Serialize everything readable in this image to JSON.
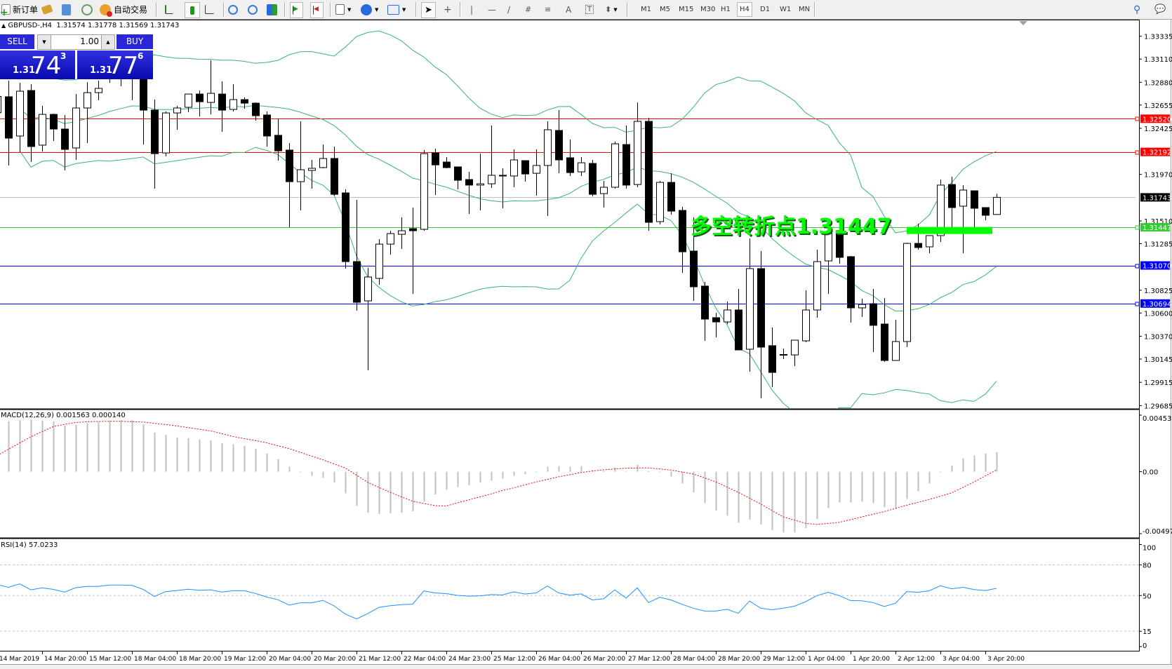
{
  "toolbar": {
    "new_order": "新订单",
    "auto_trading": "自动交易",
    "timeframes": [
      "M1",
      "M5",
      "M15",
      "M30",
      "H1",
      "H4",
      "D1",
      "W1",
      "MN"
    ],
    "active_timeframe": "H4"
  },
  "chart_header": {
    "symbol": "GBPUSD-,H4",
    "open": "1.31574",
    "high": "1.31778",
    "low": "1.31569",
    "close": "1.31743"
  },
  "one_click": {
    "sell_label": "SELL",
    "buy_label": "BUY",
    "lot": "1.00",
    "sell_price": {
      "prefix": "1.31",
      "big": "74",
      "sup": "3"
    },
    "buy_price": {
      "prefix": "1.31",
      "big": "77",
      "sup": "6"
    }
  },
  "annotation": {
    "text": "多空转折点1.31447",
    "level": 1.31447,
    "color": "#00ff00"
  },
  "macd_label": "MACD(12,26,9) 0.001563 0.000140",
  "rsi_label": "RSI(14) 57.0233",
  "chart_data": [
    {
      "type": "candlestick",
      "symbol": "GBPUSD-",
      "timeframe": "H4",
      "ylim": [
        1.29537,
        1.33485
      ],
      "y_ticks": [
        "1.33335",
        "1.33110",
        "1.32880",
        "1.32655",
        "1.32425",
        "1.31970",
        "1.31510",
        "1.31285",
        "1.30825",
        "1.30600",
        "1.30370",
        "1.30145",
        "1.29915",
        "1.29685"
      ],
      "time_labels": [
        "14 Mar 2019",
        "14 Mar 20:00",
        "15 Mar 12:00",
        "18 Mar 04:00",
        "18 Mar 20:00",
        "19 Mar 12:00",
        "20 Mar 04:00",
        "20 Mar 20:00",
        "21 Mar 12:00",
        "22 Mar 04:00",
        "24 Mar 23:00",
        "25 Mar 12:00",
        "26 Mar 04:00",
        "26 Mar 20:00",
        "27 Mar 12:00",
        "28 Mar 04:00",
        "28 Mar 20:00",
        "29 Mar 12:00",
        "1 Apr 04:00",
        "1 Apr 20:00",
        "2 Apr 12:00",
        "3 Apr 04:00",
        "3 Apr 20:00"
      ],
      "ohlc_order": [
        "open",
        "high",
        "low",
        "close"
      ],
      "ohlc": [
        [
          1.3258,
          1.3282,
          1.3247,
          1.3274
        ],
        [
          1.32737,
          1.32896,
          1.32058,
          1.32328
        ],
        [
          1.32349,
          1.32875,
          1.32189,
          1.32792
        ],
        [
          1.32799,
          1.32861,
          1.32092,
          1.32245
        ],
        [
          1.32259,
          1.32647,
          1.32196,
          1.32563
        ],
        [
          1.32563,
          1.3257,
          1.323,
          1.32418
        ],
        [
          1.32418,
          1.32556,
          1.32009,
          1.32217
        ],
        [
          1.32231,
          1.32764,
          1.32113,
          1.32626
        ],
        [
          1.32626,
          1.32882,
          1.32279,
          1.32778
        ],
        [
          1.32778,
          1.32896,
          1.32702,
          1.3282
        ],
        [
          1.3292,
          1.3305,
          1.32875,
          1.3298
        ],
        [
          1.3298,
          1.331,
          1.32841,
          1.3294
        ],
        [
          1.3294,
          1.3315,
          1.32702,
          1.3296
        ],
        [
          1.3296,
          1.33,
          1.32265,
          1.32605
        ],
        [
          1.32605,
          1.32709,
          1.31829,
          1.32175
        ],
        [
          1.32182,
          1.32591,
          1.32148,
          1.32577
        ],
        [
          1.32577,
          1.32647,
          1.32411,
          1.32626
        ],
        [
          1.32633,
          1.32764,
          1.32585,
          1.32764
        ],
        [
          1.32764,
          1.32799,
          1.32543,
          1.32688
        ],
        [
          1.32681,
          1.33097,
          1.32563,
          1.32771
        ],
        [
          1.32764,
          1.32889,
          1.3239,
          1.32605
        ],
        [
          1.32612,
          1.32861,
          1.32591,
          1.32709
        ],
        [
          1.32709,
          1.3273,
          1.32619,
          1.32674
        ],
        [
          1.32674,
          1.32681,
          1.32501,
          1.3255
        ],
        [
          1.32557,
          1.32591,
          1.32245,
          1.32349
        ],
        [
          1.32356,
          1.32522,
          1.32106,
          1.32203
        ],
        [
          1.3221,
          1.32279,
          1.31448,
          1.31898
        ],
        [
          1.31898,
          1.32494,
          1.31614,
          1.32016
        ],
        [
          1.32009,
          1.32113,
          1.31829,
          1.3203
        ],
        [
          1.32037,
          1.32265,
          1.3203,
          1.32127
        ],
        [
          1.32127,
          1.32245,
          1.3176,
          1.31773
        ],
        [
          1.31787,
          1.31822,
          1.31039,
          1.31108
        ],
        [
          1.31108,
          1.31718,
          1.30623,
          1.30706
        ],
        [
          1.3072,
          1.31046,
          1.30034,
          1.30956
        ],
        [
          1.30942,
          1.3133,
          1.30879,
          1.31281
        ],
        [
          1.31281,
          1.31413,
          1.31177,
          1.31385
        ],
        [
          1.31378,
          1.31545,
          1.31233,
          1.31413
        ],
        [
          1.31434,
          1.31642,
          1.30789,
          1.31413
        ],
        [
          1.31427,
          1.3221,
          1.31413,
          1.32175
        ],
        [
          1.32182,
          1.32224,
          1.31767,
          1.32064
        ],
        [
          1.32092,
          1.32141,
          1.3203,
          1.32037
        ],
        [
          1.32044,
          1.32044,
          1.31822,
          1.31912
        ],
        [
          1.31919,
          1.31995,
          1.31579,
          1.31864
        ],
        [
          1.31864,
          1.32175,
          1.31614,
          1.31877
        ],
        [
          1.31877,
          1.32453,
          1.31836,
          1.31961
        ],
        [
          1.31961,
          1.3203,
          1.31635,
          1.31954
        ],
        [
          1.31954,
          1.32217,
          1.31843,
          1.32113
        ],
        [
          1.32106,
          1.32106,
          1.31898,
          1.31974
        ],
        [
          1.31981,
          1.32217,
          1.3176,
          1.32058
        ],
        [
          1.32058,
          1.32494,
          1.31559,
          1.32411
        ],
        [
          1.32404,
          1.32605,
          1.31981,
          1.32113
        ],
        [
          1.32134,
          1.32314,
          1.31954,
          1.31988
        ],
        [
          1.31995,
          1.32141,
          1.31954,
          1.32085
        ],
        [
          1.32078,
          1.32113,
          1.31753,
          1.31773
        ],
        [
          1.3178,
          1.31905,
          1.31642,
          1.31843
        ],
        [
          1.31843,
          1.32293,
          1.31829,
          1.32272
        ],
        [
          1.32265,
          1.32453,
          1.31829,
          1.31864
        ],
        [
          1.3187,
          1.32681,
          1.31843,
          1.32494
        ],
        [
          1.32494,
          1.32529,
          1.31413,
          1.31496
        ],
        [
          1.31503,
          1.31905,
          1.31475,
          1.31891
        ],
        [
          1.31891,
          1.31981,
          1.31572,
          1.31607
        ],
        [
          1.31614,
          1.31649,
          1.30997,
          1.31205
        ],
        [
          1.31212,
          1.31545,
          1.3072,
          1.30859
        ],
        [
          1.30866,
          1.30907,
          1.30325,
          1.3054
        ],
        [
          1.30554,
          1.30602,
          1.3036,
          1.30512
        ],
        [
          1.30512,
          1.30713,
          1.30491,
          1.3063
        ],
        [
          1.3063,
          1.30838,
          1.30235,
          1.30235
        ],
        [
          1.30242,
          1.31337,
          1.3002,
          1.31039
        ],
        [
          1.31039,
          1.31212,
          1.29757,
          1.30263
        ],
        [
          1.30277,
          1.30457,
          1.29868,
          1.30013
        ],
        [
          1.30186,
          1.30249,
          1.30145,
          1.3019
        ],
        [
          1.30186,
          1.30332,
          1.30076,
          1.30332
        ],
        [
          1.30325,
          1.30824,
          1.30311,
          1.3063
        ],
        [
          1.3063,
          1.31226,
          1.30554,
          1.31108
        ],
        [
          1.31115,
          1.31517,
          1.30789,
          1.31406
        ],
        [
          1.31413,
          1.31441,
          1.31087,
          1.3115
        ],
        [
          1.31157,
          1.31164,
          1.30505,
          1.30651
        ],
        [
          1.30651,
          1.30741,
          1.30561,
          1.30685
        ],
        [
          1.30692,
          1.30838,
          1.30214,
          1.30478
        ],
        [
          1.30491,
          1.30748,
          1.30117,
          1.30131
        ],
        [
          1.30131,
          1.30533,
          1.30131,
          1.30318
        ],
        [
          1.30318,
          1.31295,
          1.30263,
          1.31288
        ],
        [
          1.31288,
          1.31482,
          1.31226,
          1.31247
        ],
        [
          1.31254,
          1.31365,
          1.31191,
          1.31365
        ],
        [
          1.31365,
          1.31919,
          1.31302,
          1.31864
        ],
        [
          1.3187,
          1.31947,
          1.31448,
          1.31642
        ],
        [
          1.31656,
          1.31864,
          1.31191,
          1.31815
        ],
        [
          1.31808,
          1.31808,
          1.31448,
          1.31635
        ],
        [
          1.31642,
          1.31642,
          1.31517,
          1.31566
        ],
        [
          1.31574,
          1.31778,
          1.31569,
          1.31743
        ]
      ],
      "bands": {
        "period": 20,
        "deviation": 2,
        "color": "#3cb371"
      },
      "horizontal_lines": [
        {
          "price": "1.32520",
          "color": "#ff0000"
        },
        {
          "price": "1.32192",
          "color": "#ff0000"
        },
        {
          "price": "1.31743",
          "color": "#c0c0c0",
          "label_bg": "#000000"
        },
        {
          "price": "1.31447",
          "color": "#32cd32"
        },
        {
          "price": "1.31070",
          "color": "#0000ff"
        },
        {
          "price": "1.30694",
          "color": "#0000ff"
        }
      ]
    },
    {
      "type": "bar",
      "indicator": "MACD(12,26,9)",
      "ylim": [
        -0.004973,
        0.004536
      ],
      "y_ticks": [
        "0.004536",
        "0.00",
        "-0.004973"
      ],
      "histogram_color": "#c0c0c0",
      "signal_color": "#ff0000",
      "histogram": [
        0.004,
        0.00404,
        0.00413,
        0.00417,
        0.0041,
        0.00404,
        0.0037,
        0.00376,
        0.00389,
        0.00398,
        0.00408,
        0.00413,
        0.00413,
        0.0038,
        0.00314,
        0.00294,
        0.00275,
        0.00269,
        0.00258,
        0.00252,
        0.0023,
        0.00219,
        0.00208,
        0.00185,
        0.00146,
        0.00101,
        0.00039,
        -2e-05,
        -0.00032,
        -0.0005,
        -0.00086,
        -0.00174,
        -0.00275,
        -0.00329,
        -0.0034,
        -0.00335,
        -0.00329,
        -0.00318,
        -0.00239,
        -0.00183,
        -0.00144,
        -0.00122,
        -0.00107,
        -0.00088,
        -0.00071,
        -0.00056,
        -0.00032,
        -0.00021,
        -4e-05,
        0.00039,
        0.00045,
        0.00039,
        0.00045,
        0.00013,
        4e-05,
        0.00034,
        5e-05,
        0.00056,
        4e-05,
        -4e-05,
        -0.00039,
        -0.00095,
        -0.00166,
        -0.00252,
        -0.00312,
        -0.00353,
        -0.0041,
        -0.00385,
        -0.00424,
        -0.00471,
        -0.00488,
        -0.00488,
        -0.00453,
        -0.00381,
        -0.00292,
        -0.00247,
        -0.00247,
        -0.00241,
        -0.00252,
        -0.00286,
        -0.00294,
        -0.00219,
        -0.00157,
        -0.00095,
        -4e-05,
        0.0005,
        0.00107,
        0.00129,
        0.00146,
        0.001563
      ],
      "signal": [
        0.0013,
        0.0018,
        0.0023,
        0.0028,
        0.00322,
        0.00362,
        0.0038,
        0.00395,
        0.004,
        0.00403,
        0.00404,
        0.00404,
        0.00401,
        0.00398,
        0.00388,
        0.00378,
        0.00367,
        0.00354,
        0.0034,
        0.00327,
        0.00305,
        0.00282,
        0.00265,
        0.00249,
        0.00232,
        0.00208,
        0.00185,
        0.00155,
        0.00125,
        0.00095,
        0.00062,
        0.0003,
        -0.00028,
        -0.00086,
        -0.00126,
        -0.00166,
        -0.00202,
        -0.00237,
        -0.00255,
        -0.00273,
        -0.00275,
        -0.0025,
        -0.00226,
        -0.00202,
        -0.00178,
        -0.0015,
        -0.0013,
        -0.00106,
        -0.00082,
        -0.00062,
        -0.00041,
        -0.00024,
        -6e-05,
        5e-05,
        0.00015,
        0.00022,
        0.00028,
        0.00029,
        0.0003,
        0.00022,
        0.00013,
        -3e-05,
        -0.00019,
        -0.0005,
        -0.00082,
        -0.00124,
        -0.00166,
        -0.00213,
        -0.0026,
        -0.00312,
        -0.00363,
        -0.00389,
        -0.00415,
        -0.00423,
        -0.00415,
        -0.00406,
        -0.00385,
        -0.00363,
        -0.00342,
        -0.0032,
        -0.00295,
        -0.00269,
        -0.00246,
        -0.00223,
        -0.00197,
        -0.0017,
        -0.00126,
        -0.00082,
        -0.00034,
        0.00014
      ]
    },
    {
      "type": "line",
      "indicator": "RSI(14)",
      "ylim": [
        0,
        100
      ],
      "y_ticks": [
        "100",
        "80",
        "50",
        "15",
        "0"
      ],
      "levels": [
        80,
        50,
        15
      ],
      "color": "#1e90ff",
      "values": [
        60.7,
        58.1,
        61.4,
        55.6,
        57.5,
        56.0,
        53.4,
        57.7,
        59.0,
        59.0,
        60.3,
        60.3,
        59.9,
        56.0,
        49.1,
        53.9,
        54.9,
        56.2,
        55.1,
        55.6,
        53.4,
        54.7,
        54.7,
        52.1,
        48.5,
        45.9,
        40.6,
        42.9,
        42.9,
        45.3,
        39.9,
        31.8,
        27.1,
        32.4,
        38.4,
        40.1,
        41.0,
        41.6,
        54.5,
        52.6,
        51.9,
        50.2,
        49.4,
        49.6,
        50.9,
        50.6,
        53.6,
        51.5,
        52.6,
        59.4,
        52.6,
        50.4,
        51.7,
        45.7,
        46.8,
        55.6,
        47.4,
        57.5,
        43.1,
        48.3,
        45.7,
        41.4,
        37.6,
        34.8,
        34.8,
        36.5,
        32.6,
        44.6,
        37.6,
        36.1,
        37.6,
        39.5,
        44.0,
        50.0,
        53.2,
        50.0,
        45.1,
        44.9,
        43.1,
        39.3,
        42.5,
        53.9,
        53.2,
        54.7,
        59.6,
        56.6,
        58.1,
        55.8,
        54.9,
        57.0233
      ]
    }
  ]
}
